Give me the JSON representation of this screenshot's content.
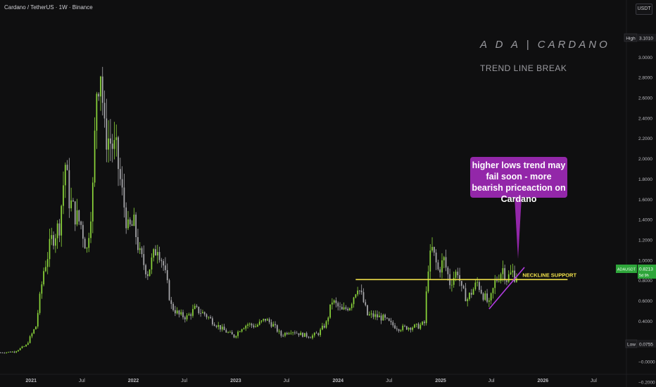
{
  "header": {
    "title": "Cardano / TetherUS · 1W · Binance"
  },
  "currency_button": "USDT",
  "annotations": {
    "title": "A D A   |   CARDANO",
    "subtitle": "TREND LINE BREAK",
    "callout": "higher lows trend may fail soon - more bearish priceaction on Cardano",
    "neckline_label": "NECKLINE SUPPORT"
  },
  "price_tags": {
    "high_label": "High",
    "high_value": "3.1010",
    "low_label": "Low",
    "low_value": "0.0755",
    "current_symbol": "ADAUSDT",
    "current_value": "0.8213",
    "current_sub": "5d 9h"
  },
  "colors": {
    "background": "#0f0f10",
    "up_candle": "#8ad43a",
    "down_candle": "#a9a9ad",
    "neckline": "#f2e24a",
    "trendline": "#b03ce0",
    "callout": "#9327a9",
    "current_price": "#2ea53a"
  },
  "chart_data": {
    "type": "candlestick",
    "title": "Cardano / TetherUS · 1W · Binance",
    "x_ticks": [
      "2021",
      "Jul",
      "2022",
      "Jul",
      "2023",
      "Jul",
      "2024",
      "Jul",
      "2025",
      "Jul",
      "2026",
      "Jul"
    ],
    "x_tick_dates": [
      "2021-01-01",
      "2021-07-01",
      "2022-01-01",
      "2022-07-01",
      "2023-01-01",
      "2023-07-01",
      "2024-01-01",
      "2024-07-01",
      "2025-01-01",
      "2025-07-01",
      "2026-01-01",
      "2026-07-01"
    ],
    "y_ticks": [
      "3.2000",
      "3.0000",
      "2.8000",
      "2.6000",
      "2.4000",
      "2.2000",
      "2.0000",
      "1.8000",
      "1.6000",
      "1.4000",
      "1.2000",
      "1.0000",
      "0.8000",
      "0.6000",
      "0.4000",
      "0.2000",
      "−0.0000",
      "−0.2000"
    ],
    "ylim": [
      -0.25,
      3.38
    ],
    "xlim": [
      "2020-09-12",
      "2026-10-26"
    ],
    "high": 3.101,
    "low": 0.0755,
    "last_price": 0.8213,
    "close_points": [
      [
        "2020-09-14",
        0.09
      ],
      [
        "2020-11-02",
        0.1
      ],
      [
        "2020-12-14",
        0.16
      ],
      [
        "2021-01-18",
        0.35
      ],
      [
        "2021-02-15",
        0.9
      ],
      [
        "2021-03-15",
        1.2
      ],
      [
        "2021-04-12",
        1.35
      ],
      [
        "2021-05-03",
        1.95
      ],
      [
        "2021-05-17",
        1.6
      ],
      [
        "2021-06-07",
        1.45
      ],
      [
        "2021-06-28",
        1.35
      ],
      [
        "2021-07-19",
        1.1
      ],
      [
        "2021-08-09",
        1.7
      ],
      [
        "2021-08-23",
        2.7
      ],
      [
        "2021-09-06",
        2.9
      ],
      [
        "2021-09-20",
        2.25
      ],
      [
        "2021-10-04",
        2.2
      ],
      [
        "2021-11-01",
        2.05
      ],
      [
        "2021-11-22",
        1.65
      ],
      [
        "2021-12-13",
        1.3
      ],
      [
        "2022-01-03",
        1.35
      ],
      [
        "2022-01-24",
        1.05
      ],
      [
        "2022-02-21",
        0.88
      ],
      [
        "2022-03-28",
        1.15
      ],
      [
        "2022-04-18",
        0.95
      ],
      [
        "2022-05-16",
        0.55
      ],
      [
        "2022-06-13",
        0.46
      ],
      [
        "2022-07-11",
        0.44
      ],
      [
        "2022-08-08",
        0.52
      ],
      [
        "2022-09-12",
        0.47
      ],
      [
        "2022-10-10",
        0.4
      ],
      [
        "2022-11-14",
        0.32
      ],
      [
        "2022-12-26",
        0.25
      ],
      [
        "2023-01-23",
        0.34
      ],
      [
        "2023-02-13",
        0.37
      ],
      [
        "2023-03-13",
        0.35
      ],
      [
        "2023-04-17",
        0.42
      ],
      [
        "2023-05-15",
        0.36
      ],
      [
        "2023-06-12",
        0.26
      ],
      [
        "2023-07-17",
        0.31
      ],
      [
        "2023-08-21",
        0.27
      ],
      [
        "2023-09-25",
        0.25
      ],
      [
        "2023-10-23",
        0.28
      ],
      [
        "2023-11-20",
        0.38
      ],
      [
        "2023-12-11",
        0.6
      ],
      [
        "2024-01-15",
        0.5
      ],
      [
        "2024-02-12",
        0.55
      ],
      [
        "2024-03-11",
        0.75
      ],
      [
        "2024-03-25",
        0.65
      ],
      [
        "2024-04-15",
        0.46
      ],
      [
        "2024-05-13",
        0.45
      ],
      [
        "2024-06-10",
        0.43
      ],
      [
        "2024-07-08",
        0.37
      ],
      [
        "2024-08-05",
        0.33
      ],
      [
        "2024-09-09",
        0.34
      ],
      [
        "2024-10-14",
        0.35
      ],
      [
        "2024-11-04",
        0.38
      ],
      [
        "2024-11-18",
        0.95
      ],
      [
        "2024-12-02",
        1.1
      ],
      [
        "2024-12-23",
        0.9
      ],
      [
        "2025-01-13",
        1.0
      ],
      [
        "2025-02-03",
        0.78
      ],
      [
        "2025-03-03",
        0.9
      ],
      [
        "2025-03-17",
        0.7
      ],
      [
        "2025-04-07",
        0.62
      ],
      [
        "2025-05-12",
        0.78
      ],
      [
        "2025-06-02",
        0.66
      ],
      [
        "2025-06-23",
        0.56
      ],
      [
        "2025-07-14",
        0.78
      ],
      [
        "2025-08-11",
        0.92
      ],
      [
        "2025-08-25",
        0.82
      ],
      [
        "2025-09-15",
        0.88
      ],
      [
        "2025-09-29",
        0.8213
      ]
    ],
    "neckline": {
      "from": "2024-03-04",
      "to": "2026-03-30",
      "price": 0.81
    },
    "trendline": {
      "from": [
        "2025-06-23",
        0.52
      ],
      "to": [
        "2025-10-27",
        0.93
      ]
    }
  }
}
